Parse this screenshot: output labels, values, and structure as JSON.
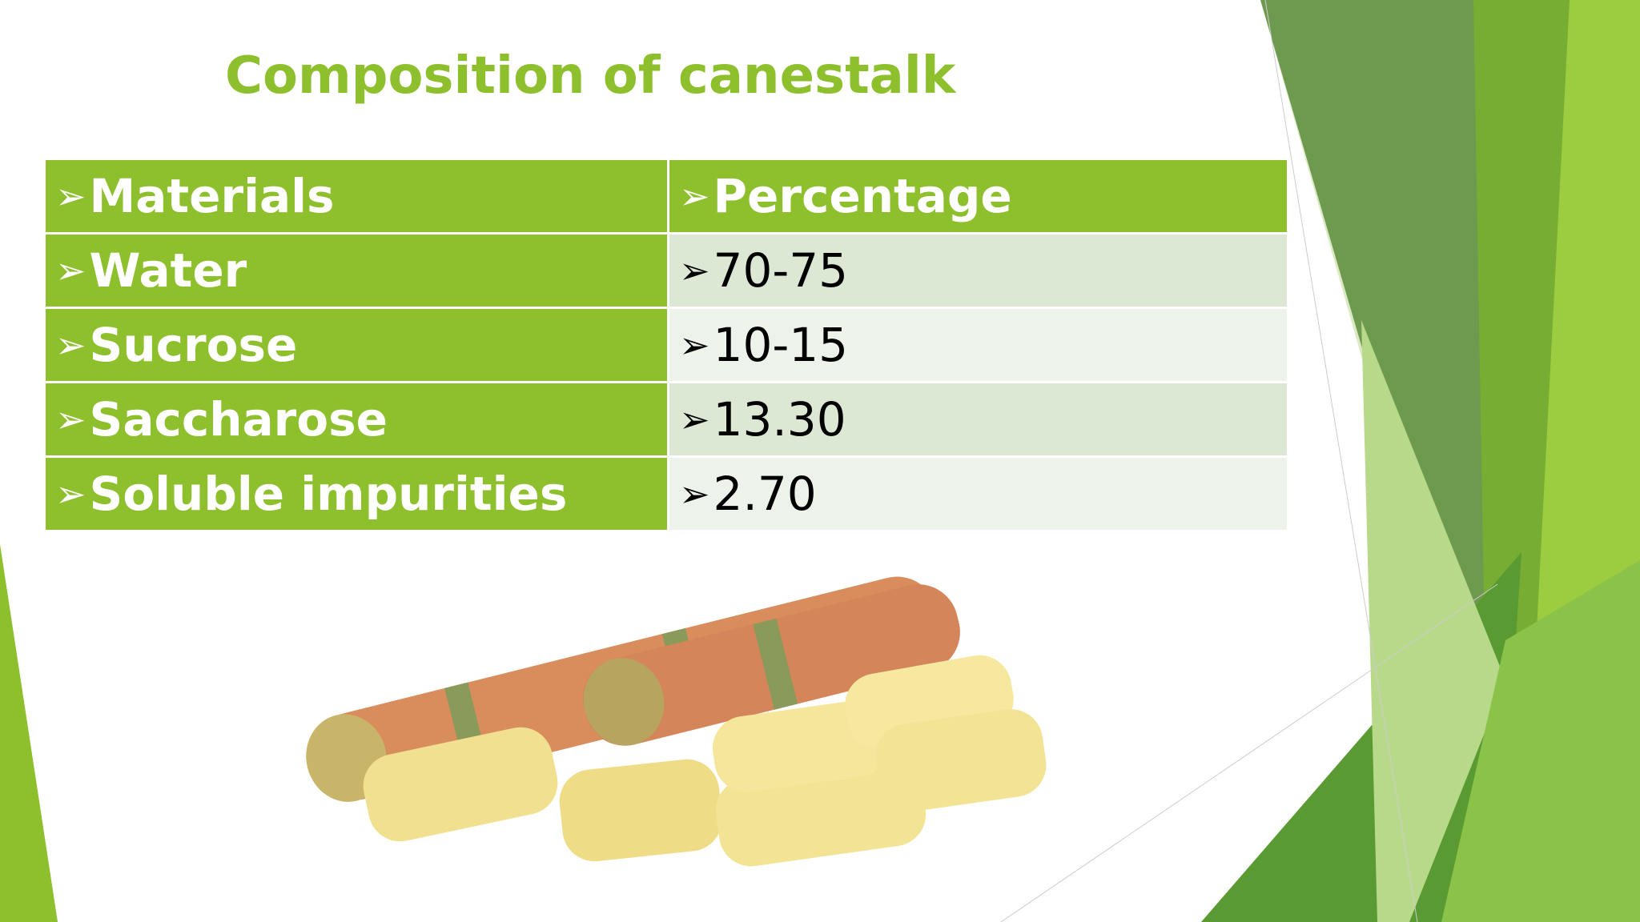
{
  "header": {
    "title": "Composition of canestalk"
  },
  "table": {
    "columns": [
      "Materials",
      "Percentage"
    ],
    "rows": [
      [
        "Water",
        "70-75"
      ],
      [
        "Sucrose",
        "10-15"
      ],
      [
        "Saccharose",
        "13.30"
      ],
      [
        "Soluble impurities",
        "2.70"
      ]
    ]
  }
}
